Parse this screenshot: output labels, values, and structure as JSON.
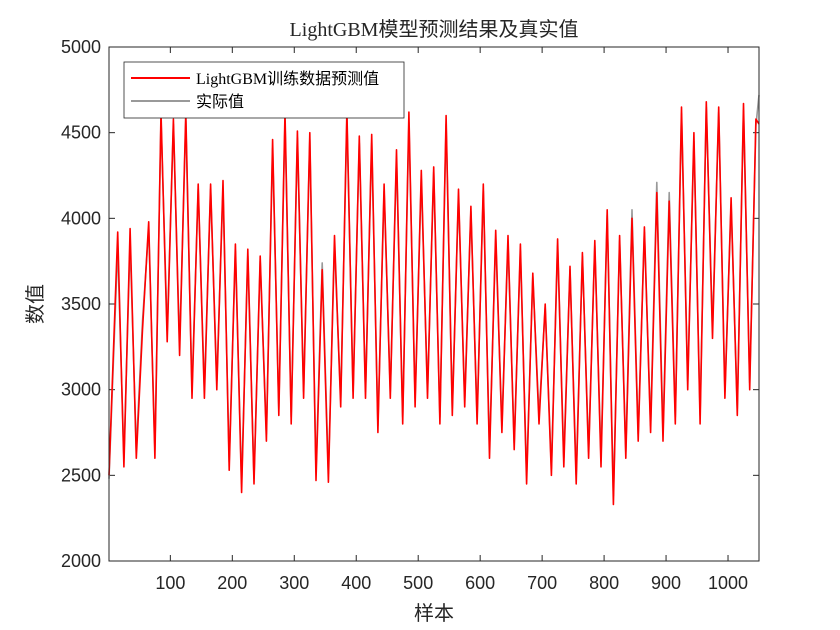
{
  "chart_data": {
    "type": "line",
    "title": "LightGBM模型预测结果及真实值",
    "xlabel": "样本",
    "ylabel": "数值",
    "xlim": [
      1,
      1050
    ],
    "ylim": [
      2000,
      5000
    ],
    "xticks": [
      100,
      200,
      300,
      400,
      500,
      600,
      700,
      800,
      900,
      1000
    ],
    "yticks": [
      2000,
      2500,
      3000,
      3500,
      4000,
      4500,
      5000
    ],
    "legend_position": "top-left",
    "series": [
      {
        "name": "LightGBM训练数据预测值",
        "color": "#ff0000"
      },
      {
        "name": "实际值",
        "color": "#999999"
      }
    ],
    "x": [
      1,
      15,
      25,
      35,
      45,
      55,
      65,
      75,
      85,
      95,
      105,
      115,
      125,
      135,
      145,
      155,
      165,
      175,
      185,
      195,
      205,
      215,
      225,
      235,
      245,
      255,
      265,
      275,
      285,
      295,
      305,
      315,
      325,
      335,
      345,
      355,
      365,
      375,
      385,
      395,
      405,
      415,
      425,
      435,
      445,
      455,
      465,
      475,
      485,
      495,
      505,
      515,
      525,
      535,
      545,
      555,
      565,
      575,
      585,
      595,
      605,
      615,
      625,
      635,
      645,
      655,
      665,
      675,
      685,
      695,
      705,
      715,
      725,
      735,
      745,
      755,
      765,
      775,
      785,
      795,
      805,
      815,
      825,
      835,
      845,
      855,
      865,
      875,
      885,
      895,
      905,
      915,
      925,
      935,
      945,
      955,
      965,
      975,
      985,
      995,
      1005,
      1015,
      1025,
      1035,
      1045,
      1050
    ],
    "predicted": [
      2500,
      3920,
      2550,
      3940,
      2600,
      3350,
      3980,
      2600,
      4620,
      3280,
      4580,
      3200,
      4620,
      2950,
      4200,
      2950,
      4200,
      3000,
      4220,
      2530,
      3850,
      2400,
      3820,
      2450,
      3780,
      2700,
      4460,
      2850,
      4620,
      2800,
      4510,
      2950,
      4500,
      2470,
      3700,
      2460,
      3900,
      2900,
      4630,
      2950,
      4480,
      2950,
      4490,
      2750,
      4200,
      2950,
      4400,
      2800,
      4620,
      2900,
      4280,
      2950,
      4300,
      2800,
      4600,
      2850,
      4170,
      2900,
      4070,
      2800,
      4200,
      2600,
      3930,
      2750,
      3900,
      2650,
      3850,
      2450,
      3680,
      2800,
      3500,
      2500,
      3880,
      2550,
      3720,
      2450,
      3800,
      2600,
      3870,
      2550,
      4050,
      2330,
      3900,
      2600,
      4000,
      2700,
      3950,
      2750,
      4150,
      2700,
      4100,
      2800,
      4650,
      3000,
      4500,
      2800,
      4680,
      3300,
      4650,
      2950,
      4120,
      2850,
      4670,
      3000,
      4580,
      4550
    ],
    "actual": [
      2480,
      3830,
      2600,
      3860,
      2650,
      3400,
      3940,
      2650,
      4580,
      3340,
      4550,
      3260,
      4570,
      3000,
      4170,
      3000,
      4170,
      3050,
      4170,
      2580,
      3810,
      2450,
      3780,
      2480,
      3750,
      2740,
      4410,
      2890,
      4570,
      2840,
      4470,
      2990,
      4460,
      2520,
      3740,
      2510,
      3850,
      2940,
      4580,
      2990,
      4440,
      2990,
      4440,
      2790,
      4160,
      2990,
      4350,
      2840,
      4560,
      2950,
      4230,
      2990,
      4270,
      2840,
      4550,
      2890,
      4130,
      2940,
      4040,
      2840,
      4160,
      2650,
      3880,
      2790,
      3860,
      2690,
      3810,
      2500,
      3660,
      2850,
      3480,
      2540,
      3840,
      2600,
      3700,
      2500,
      3780,
      2640,
      3840,
      2600,
      4020,
      2380,
      3870,
      2640,
      4050,
      2740,
      3920,
      2790,
      4210,
      2750,
      4150,
      2840,
      4610,
      3050,
      4450,
      2850,
      4650,
      3350,
      4620,
      2990,
      4080,
      2890,
      4630,
      3040,
      4540,
      4720
    ]
  }
}
